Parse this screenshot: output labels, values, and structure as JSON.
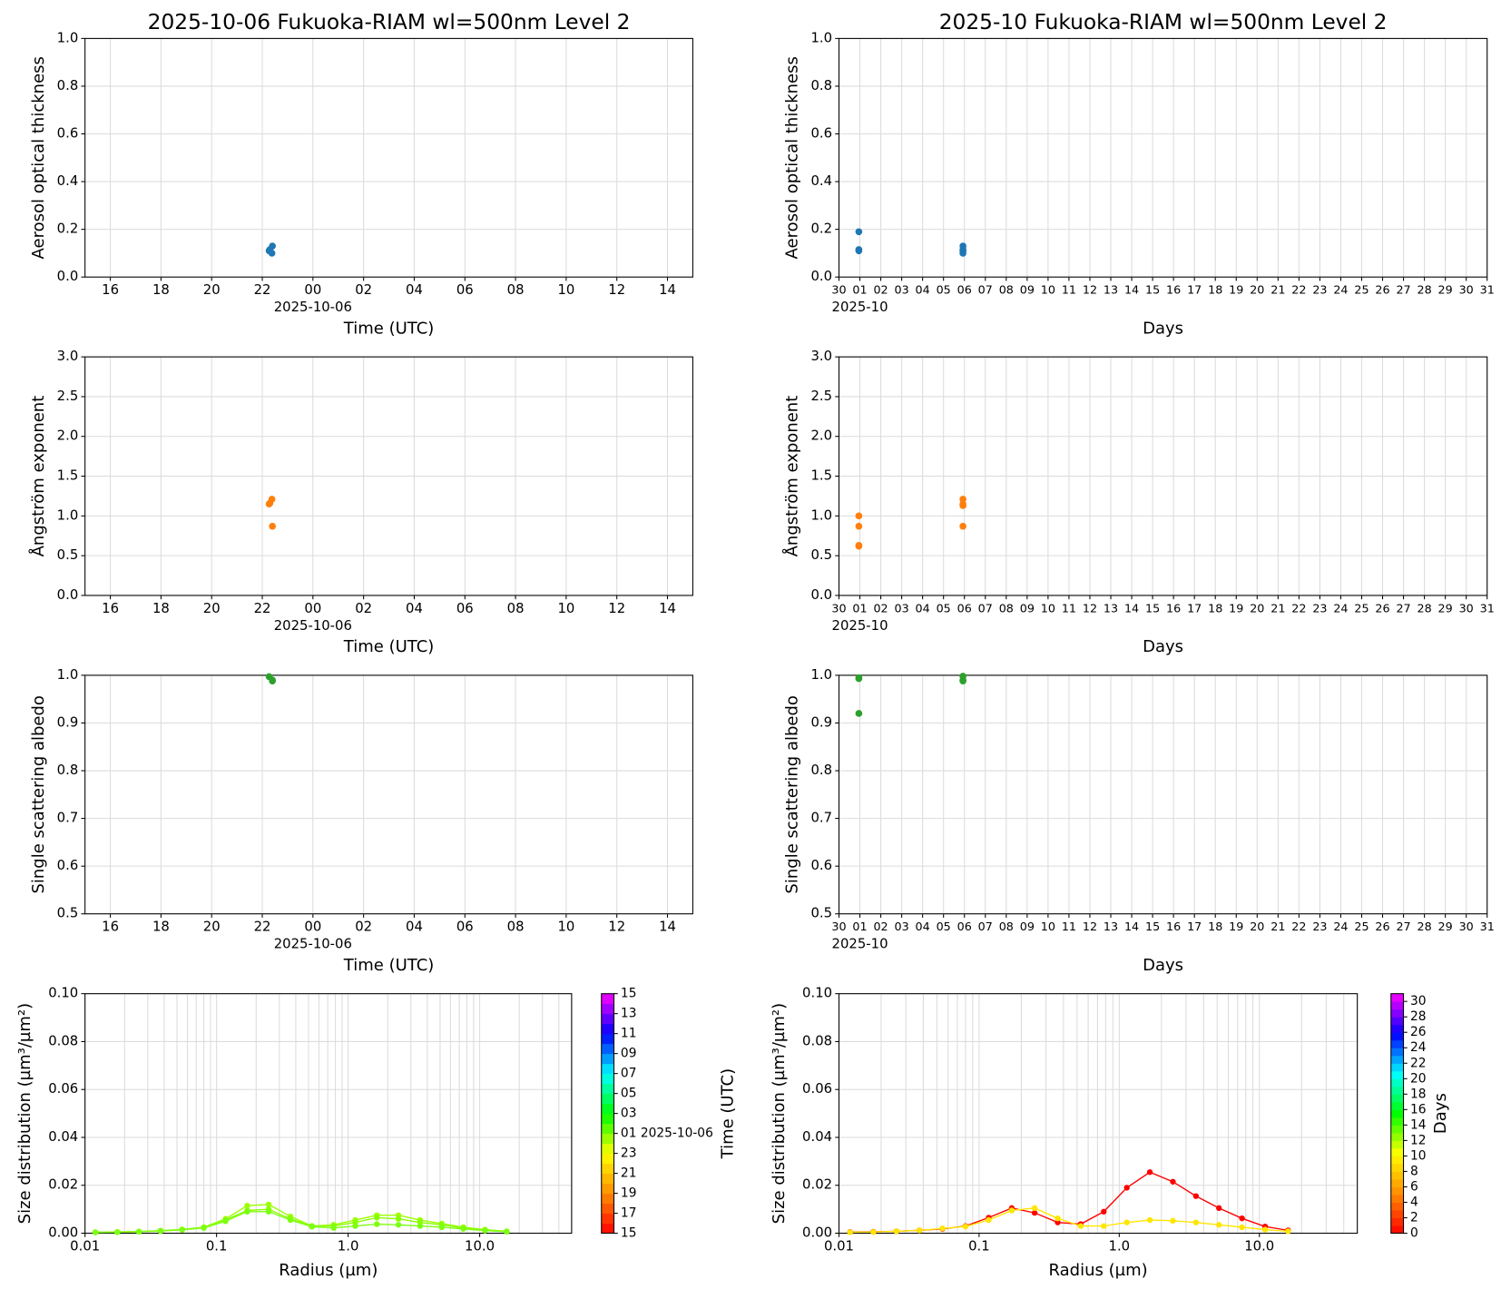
{
  "chart_data": [
    {
      "type": "scatter",
      "title": "2025-10-06  Fukuoka-RIAM  wl=500nm  Level 2",
      "x_label": "Time (UTC)",
      "date_label": "2025-10-06",
      "y_label": "Aerosol optical thickness",
      "xlim": [
        -9,
        15
      ],
      "xticks": [
        {
          "value": -8,
          "label": "16"
        },
        {
          "value": -6,
          "label": "18"
        },
        {
          "value": -4,
          "label": "20"
        },
        {
          "value": -2,
          "label": "22"
        },
        {
          "value": 0,
          "label": "00"
        },
        {
          "value": 2,
          "label": "02"
        },
        {
          "value": 4,
          "label": "04"
        },
        {
          "value": 6,
          "label": "06"
        },
        {
          "value": 8,
          "label": "08"
        },
        10,
        12,
        14
      ],
      "ylim": [
        0,
        1
      ],
      "yticks": [
        {
          "value": 0,
          "label": "0.0"
        },
        0.2,
        0.4,
        0.6,
        0.8,
        {
          "value": 1,
          "label": "1.0"
        }
      ],
      "grid": true,
      "series": [
        {
          "color": "#1f77b4",
          "x": [
            -1.73,
            -1.7,
            -1.62,
            -1.6
          ],
          "values": [
            0.11,
            0.115,
            0.1,
            0.13
          ]
        }
      ]
    },
    {
      "type": "scatter",
      "title": "2025-10  Fukuoka-RIAM  wl=500nm  Level 2",
      "x_label": "Days",
      "date_label": "2025-10",
      "y_label": "Aerosol optical thickness",
      "xlim": [
        0,
        31
      ],
      "xticks": [
        {
          "value": 0,
          "label": "30"
        },
        {
          "value": 1,
          "label": "01"
        },
        {
          "value": 2,
          "label": "02"
        },
        {
          "value": 3,
          "label": "03"
        },
        {
          "value": 4,
          "label": "04"
        },
        {
          "value": 5,
          "label": "05"
        },
        {
          "value": 6,
          "label": "06"
        },
        {
          "value": 7,
          "label": "07"
        },
        {
          "value": 8,
          "label": "08"
        },
        {
          "value": 9,
          "label": "09"
        },
        10,
        11,
        12,
        13,
        14,
        15,
        16,
        17,
        18,
        19,
        20,
        21,
        22,
        23,
        24,
        25,
        26,
        27,
        28,
        29,
        30,
        31
      ],
      "ylim": [
        0,
        1
      ],
      "yticks": [
        {
          "value": 0,
          "label": "0.0"
        },
        0.2,
        0.4,
        0.6,
        0.8,
        {
          "value": 1,
          "label": "1.0"
        }
      ],
      "grid": true,
      "series": [
        {
          "color": "#1f77b4",
          "x": [
            0.95,
            0.95,
            0.95,
            5.93,
            5.93,
            5.93,
            5.93
          ],
          "values": [
            0.19,
            0.115,
            0.11,
            0.13,
            0.11,
            0.1,
            0.115
          ]
        }
      ]
    },
    {
      "type": "scatter",
      "x_label": "Time (UTC)",
      "date_label": "2025-10-06",
      "y_label": "Ångström exponent",
      "xlim": [
        -9,
        15
      ],
      "xticks": [
        {
          "value": -8,
          "label": "16"
        },
        {
          "value": -6,
          "label": "18"
        },
        {
          "value": -4,
          "label": "20"
        },
        {
          "value": -2,
          "label": "22"
        },
        {
          "value": 0,
          "label": "00"
        },
        {
          "value": 2,
          "label": "02"
        },
        {
          "value": 4,
          "label": "04"
        },
        {
          "value": 6,
          "label": "06"
        },
        {
          "value": 8,
          "label": "08"
        },
        10,
        12,
        14
      ],
      "ylim": [
        0,
        3
      ],
      "yticks": [
        {
          "value": 0,
          "label": "0.0"
        },
        0.5,
        {
          "value": 1,
          "label": "1.0"
        },
        1.5,
        {
          "value": 2,
          "label": "2.0"
        },
        2.5,
        {
          "value": 3,
          "label": "3.0"
        }
      ],
      "grid": true,
      "series": [
        {
          "color": "#ff7f0e",
          "x": [
            -1.73,
            -1.7,
            -1.62,
            -1.6
          ],
          "values": [
            1.15,
            1.16,
            1.21,
            0.87
          ]
        }
      ]
    },
    {
      "type": "scatter",
      "x_label": "Days",
      "date_label": "2025-10",
      "y_label": "Ångström exponent",
      "xlim": [
        0,
        31
      ],
      "xticks": [
        {
          "value": 0,
          "label": "30"
        },
        {
          "value": 1,
          "label": "01"
        },
        {
          "value": 2,
          "label": "02"
        },
        {
          "value": 3,
          "label": "03"
        },
        {
          "value": 4,
          "label": "04"
        },
        {
          "value": 5,
          "label": "05"
        },
        {
          "value": 6,
          "label": "06"
        },
        {
          "value": 7,
          "label": "07"
        },
        {
          "value": 8,
          "label": "08"
        },
        {
          "value": 9,
          "label": "09"
        },
        10,
        11,
        12,
        13,
        14,
        15,
        16,
        17,
        18,
        19,
        20,
        21,
        22,
        23,
        24,
        25,
        26,
        27,
        28,
        29,
        30,
        31
      ],
      "ylim": [
        0,
        3
      ],
      "yticks": [
        {
          "value": 0,
          "label": "0.0"
        },
        0.5,
        {
          "value": 1,
          "label": "1.0"
        },
        1.5,
        {
          "value": 2,
          "label": "2.0"
        },
        2.5,
        {
          "value": 3,
          "label": "3.0"
        }
      ],
      "grid": true,
      "series": [
        {
          "color": "#ff7f0e",
          "x": [
            0.95,
            0.95,
            0.95,
            0.95,
            5.93,
            5.93,
            5.93,
            5.93
          ],
          "values": [
            1.0,
            0.87,
            0.63,
            0.62,
            1.21,
            1.15,
            1.13,
            0.87
          ]
        }
      ]
    },
    {
      "type": "scatter",
      "x_label": "Time (UTC)",
      "date_label": "2025-10-06",
      "y_label": "Single scattering albedo",
      "xlim": [
        -9,
        15
      ],
      "xticks": [
        {
          "value": -8,
          "label": "16"
        },
        {
          "value": -6,
          "label": "18"
        },
        {
          "value": -4,
          "label": "20"
        },
        {
          "value": -2,
          "label": "22"
        },
        {
          "value": 0,
          "label": "00"
        },
        {
          "value": 2,
          "label": "02"
        },
        {
          "value": 4,
          "label": "04"
        },
        {
          "value": 6,
          "label": "06"
        },
        {
          "value": 8,
          "label": "08"
        },
        10,
        12,
        14
      ],
      "ylim": [
        0.5,
        1
      ],
      "yticks": [
        0.5,
        0.6,
        0.7,
        0.8,
        0.9,
        {
          "value": 1,
          "label": "1.0"
        }
      ],
      "grid": true,
      "series": [
        {
          "color": "#2ca02c",
          "x": [
            -1.73,
            -1.6,
            -1.6
          ],
          "values": [
            0.997,
            0.99,
            0.988
          ]
        }
      ]
    },
    {
      "type": "scatter",
      "x_label": "Days",
      "date_label": "2025-10",
      "y_label": "Single scattering albedo",
      "xlim": [
        0,
        31
      ],
      "xticks": [
        {
          "value": 0,
          "label": "30"
        },
        {
          "value": 1,
          "label": "01"
        },
        {
          "value": 2,
          "label": "02"
        },
        {
          "value": 3,
          "label": "03"
        },
        {
          "value": 4,
          "label": "04"
        },
        {
          "value": 5,
          "label": "05"
        },
        {
          "value": 6,
          "label": "06"
        },
        {
          "value": 7,
          "label": "07"
        },
        {
          "value": 8,
          "label": "08"
        },
        {
          "value": 9,
          "label": "09"
        },
        10,
        11,
        12,
        13,
        14,
        15,
        16,
        17,
        18,
        19,
        20,
        21,
        22,
        23,
        24,
        25,
        26,
        27,
        28,
        29,
        30,
        31
      ],
      "ylim": [
        0.5,
        1
      ],
      "yticks": [
        0.5,
        0.6,
        0.7,
        0.8,
        0.9,
        {
          "value": 1,
          "label": "1.0"
        }
      ],
      "grid": true,
      "series": [
        {
          "color": "#2ca02c",
          "x": [
            0.95,
            0.95,
            0.95,
            5.93,
            5.93,
            5.93
          ],
          "values": [
            0.995,
            0.993,
            0.92,
            0.998,
            0.99,
            0.988
          ]
        }
      ]
    },
    {
      "type": "line",
      "x_label": "Radius (µm)",
      "y_label": "Size distribution (µm³/µm²)",
      "xlog": true,
      "x": [
        0.012,
        0.0176,
        0.0257,
        0.0375,
        0.0548,
        0.08,
        0.117,
        0.171,
        0.249,
        0.364,
        0.531,
        0.776,
        1.133,
        1.654,
        2.415,
        3.526,
        5.148,
        7.517,
        10.98,
        16.03
      ],
      "xlim": [
        0.01,
        50
      ],
      "xticks": [
        0.01,
        0.1,
        {
          "value": 1,
          "label": "1.0"
        },
        {
          "value": 10,
          "label": "10.0"
        }
      ],
      "xminorticks": [
        0.02,
        0.03,
        0.04,
        0.05,
        0.06,
        0.07,
        0.08,
        0.09,
        0.2,
        0.3,
        0.4,
        0.5,
        0.6,
        0.7,
        0.8,
        0.9,
        2,
        3,
        4,
        5,
        6,
        7,
        8,
        9,
        20,
        30,
        40,
        50
      ],
      "ylim": [
        0,
        0.1
      ],
      "yticks": [
        {
          "value": 0,
          "label": "0.00"
        },
        0.02,
        0.04,
        0.06,
        0.08,
        {
          "value": 0.1,
          "label": "0.10"
        }
      ],
      "grid": true,
      "series": [
        {
          "color": "#9cff00",
          "values": [
            0.0004,
            0.0005,
            0.0007,
            0.0011,
            0.0016,
            0.0025,
            0.006,
            0.0115,
            0.012,
            0.007,
            0.003,
            0.0035,
            0.0055,
            0.0075,
            0.0075,
            0.0055,
            0.004,
            0.0025,
            0.0015,
            0.0008
          ]
        },
        {
          "color": "#88ff00",
          "values": [
            0.0004,
            0.0005,
            0.0007,
            0.001,
            0.0015,
            0.0023,
            0.0055,
            0.0095,
            0.01,
            0.006,
            0.003,
            0.003,
            0.0045,
            0.0065,
            0.006,
            0.0045,
            0.0035,
            0.0022,
            0.0013,
            0.0007
          ]
        },
        {
          "color": "#7cff10",
          "values": [
            0.0003,
            0.0004,
            0.0006,
            0.0009,
            0.0014,
            0.0022,
            0.005,
            0.009,
            0.009,
            0.0055,
            0.0027,
            0.0022,
            0.003,
            0.0038,
            0.0035,
            0.003,
            0.0025,
            0.0018,
            0.0011,
            0.0006
          ]
        }
      ],
      "colorbar": {
        "label": "Time (UTC)",
        "clim": [
          -9,
          15
        ],
        "colors": [
          "#ff0000",
          "#ff8c00",
          "#ffff00",
          "#00ff00",
          "#00ffff",
          "#0000ff",
          "#ff00ff"
        ],
        "ticks": [
          15,
          13,
          11,
          {
            "value": 9,
            "label": "09"
          },
          {
            "value": 7,
            "label": "07"
          },
          {
            "value": 5,
            "label": "05"
          },
          {
            "value": 3,
            "label": "03"
          },
          {
            "value": 1,
            "label": "01 2025-10-06"
          },
          {
            "value": -1,
            "label": "23"
          },
          {
            "value": -3,
            "label": "21"
          },
          {
            "value": -5,
            "label": "19"
          },
          {
            "value": -7,
            "label": "17"
          },
          {
            "value": -9,
            "label": "15"
          }
        ]
      }
    },
    {
      "type": "line",
      "x_label": "Radius (µm)",
      "y_label": "Size distribution (µm³/µm²)",
      "xlog": true,
      "x": [
        0.012,
        0.0176,
        0.0257,
        0.0375,
        0.0548,
        0.08,
        0.117,
        0.171,
        0.249,
        0.364,
        0.531,
        0.776,
        1.133,
        1.654,
        2.415,
        3.526,
        5.148,
        7.517,
        10.98,
        16.03
      ],
      "xlim": [
        0.01,
        50
      ],
      "xticks": [
        0.01,
        0.1,
        {
          "value": 1,
          "label": "1.0"
        },
        {
          "value": 10,
          "label": "10.0"
        }
      ],
      "xminorticks": [
        0.02,
        0.03,
        0.04,
        0.05,
        0.06,
        0.07,
        0.08,
        0.09,
        0.2,
        0.3,
        0.4,
        0.5,
        0.6,
        0.7,
        0.8,
        0.9,
        2,
        3,
        4,
        5,
        6,
        7,
        8,
        9,
        20,
        30,
        40,
        50
      ],
      "ylim": [
        0,
        0.1
      ],
      "yticks": [
        {
          "value": 0,
          "label": "0.00"
        },
        0.02,
        0.04,
        0.06,
        0.08,
        {
          "value": 0.1,
          "label": "0.10"
        }
      ],
      "grid": true,
      "series": [
        {
          "color": "#ff0000",
          "values": [
            0.0005,
            0.0006,
            0.0008,
            0.0012,
            0.0018,
            0.003,
            0.0065,
            0.0105,
            0.0085,
            0.0045,
            0.0038,
            0.009,
            0.019,
            0.0255,
            0.0215,
            0.0155,
            0.0105,
            0.0062,
            0.0028,
            0.0012
          ]
        },
        {
          "color": "#ffe600",
          "values": [
            0.0004,
            0.0005,
            0.0008,
            0.0012,
            0.002,
            0.0028,
            0.0055,
            0.0095,
            0.0105,
            0.0062,
            0.003,
            0.003,
            0.0045,
            0.0055,
            0.0052,
            0.0045,
            0.0035,
            0.0025,
            0.0015,
            0.0008
          ]
        }
      ],
      "colorbar": {
        "label": "Days",
        "clim": [
          0,
          31
        ],
        "colors": [
          "#ff0000",
          "#ff8c00",
          "#ffff00",
          "#00ff00",
          "#00ffff",
          "#0000ff",
          "#ff00ff"
        ],
        "ticks": [
          0,
          2,
          4,
          6,
          8,
          10,
          12,
          14,
          16,
          18,
          20,
          22,
          24,
          26,
          28,
          30
        ]
      }
    }
  ]
}
